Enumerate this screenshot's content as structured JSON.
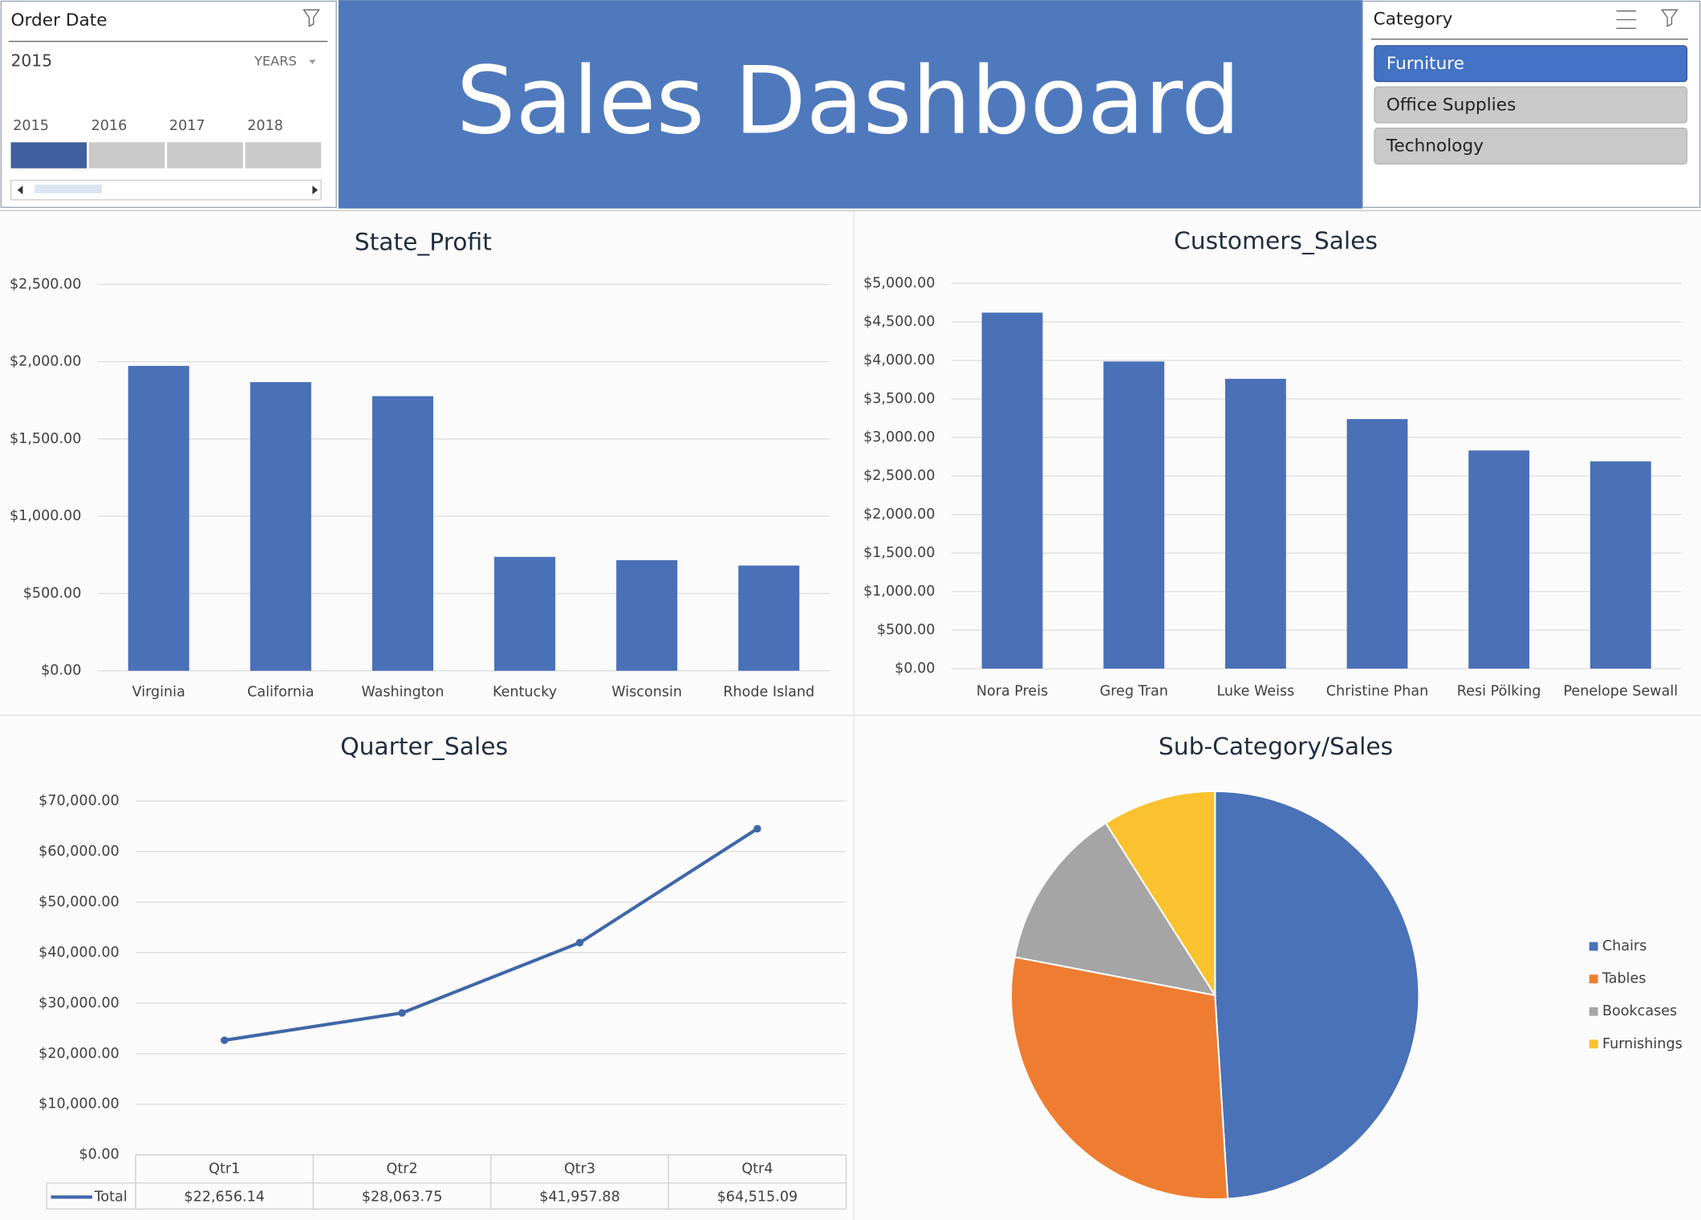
{
  "header": {
    "title": "Sales Dashboard"
  },
  "order_date_slicer": {
    "title": "Order Date",
    "selection": "2015",
    "level": "YEARS",
    "years": [
      "2015",
      "2016",
      "2017",
      "2018"
    ]
  },
  "category_slicer": {
    "title": "Category",
    "items": [
      "Furniture",
      "Office Supplies",
      "Technology"
    ]
  },
  "chart_data": [
    {
      "type": "bar",
      "title": "State_Profit",
      "categories": [
        "Virginia",
        "California",
        "Washington",
        "Kentucky",
        "Wisconsin",
        "Rhode Island"
      ],
      "values": [
        1973,
        1868,
        1777,
        737,
        716,
        681
      ],
      "color": "#4a70b8",
      "ylim": [
        0,
        2500
      ],
      "yticks": [
        {
          "value": 0,
          "label": "$0.00"
        },
        {
          "value": 500,
          "label": "$500.00"
        },
        {
          "value": 1000,
          "label": "$1,000.00"
        },
        {
          "value": 1500,
          "label": "$1,500.00"
        },
        {
          "value": 2000,
          "label": "$2,000.00"
        },
        {
          "value": 2500,
          "label": "$2,500.00"
        }
      ],
      "grid": true
    },
    {
      "type": "bar",
      "title": "Customers_Sales",
      "categories": [
        "Nora Preis",
        "Greg Tran",
        "Luke Weiss",
        "Christine Phan",
        "Resi Pölking",
        "Penelope Sewall"
      ],
      "values": [
        4620,
        3986,
        3761,
        3239,
        2831,
        2690
      ],
      "color": "#4a70b8",
      "ylim": [
        0,
        5000
      ],
      "yticks": [
        {
          "value": 0,
          "label": "$0.00"
        },
        {
          "value": 500,
          "label": "$500.00"
        },
        {
          "value": 1000,
          "label": "$1,000.00"
        },
        {
          "value": 1500,
          "label": "$1,500.00"
        },
        {
          "value": 2000,
          "label": "$2,000.00"
        },
        {
          "value": 2500,
          "label": "$2,500.00"
        },
        {
          "value": 3000,
          "label": "$3,000.00"
        },
        {
          "value": 3500,
          "label": "$3,500.00"
        },
        {
          "value": 4000,
          "label": "$4,000.00"
        },
        {
          "value": 4500,
          "label": "$4,500.00"
        },
        {
          "value": 5000,
          "label": "$5,000.00"
        }
      ],
      "grid": true
    },
    {
      "type": "line",
      "title": "Quarter_Sales",
      "categories": [
        "Qtr1",
        "Qtr2",
        "Qtr3",
        "Qtr4"
      ],
      "series": [
        {
          "name": "Total",
          "color": "#3f66a8",
          "values": [
            22656.14,
            28063.75,
            41957.88,
            64515.09
          ],
          "value_labels": [
            "$22,656.14",
            "$28,063.75",
            "$41,957.88",
            "$64,515.09"
          ]
        }
      ],
      "ylim": [
        0,
        70000
      ],
      "yticks": [
        {
          "value": 0,
          "label": "$0.00"
        },
        {
          "value": 10000,
          "label": "$10,000.00"
        },
        {
          "value": 20000,
          "label": "$20,000.00"
        },
        {
          "value": 30000,
          "label": "$30,000.00"
        },
        {
          "value": 40000,
          "label": "$40,000.00"
        },
        {
          "value": 50000,
          "label": "$50,000.00"
        },
        {
          "value": 60000,
          "label": "$60,000.00"
        },
        {
          "value": 70000,
          "label": "$70,000.00"
        }
      ],
      "grid": true
    },
    {
      "type": "pie",
      "title": "Sub-Category/Sales",
      "categories": [
        "Chairs",
        "Tables",
        "Bookcases",
        "Furnishings"
      ],
      "values": [
        49,
        29,
        13,
        9
      ],
      "colors": [
        "#4a72b8",
        "#ee7d31",
        "#a5a5a5",
        "#f9c22e"
      ],
      "legend": "right"
    }
  ]
}
